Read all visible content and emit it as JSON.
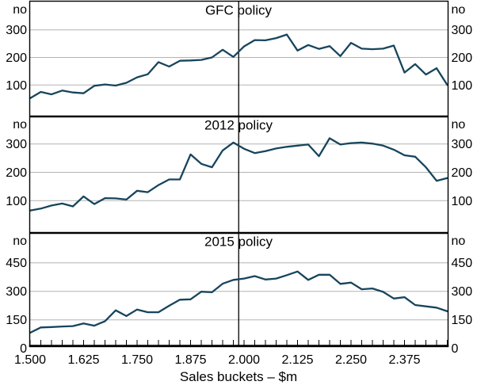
{
  "chart_data": {
    "type": "line",
    "title": "",
    "x_axis_title": "Sales buckets – $m",
    "unit_label": "no",
    "x_start": 1.5,
    "x_step": 0.025,
    "n_points": 40,
    "x_tick_labels": [
      "1.500",
      "1.625",
      "1.750",
      "1.875",
      "2.000",
      "2.125",
      "2.250",
      "2.375"
    ],
    "x_tick_values": [
      1.5,
      1.625,
      1.75,
      1.875,
      2.0,
      2.125,
      2.25,
      2.375
    ],
    "reference_line_x": 1.9875,
    "line_color": "#17455c",
    "grid_color": "#b3b3b3",
    "axis_color": "#000000",
    "legend": "none",
    "grid": "horizontal",
    "panels": [
      {
        "title": "GFC policy",
        "ylim": [
          0,
          410
        ],
        "gridlines": [
          100,
          200,
          300
        ],
        "ytick_labels": [
          100,
          200,
          300
        ],
        "values": [
          52,
          75,
          66,
          80,
          73,
          70,
          97,
          102,
          98,
          108,
          128,
          139,
          183,
          167,
          188,
          189,
          191,
          200,
          228,
          202,
          240,
          263,
          262,
          270,
          283,
          225,
          245,
          231,
          241,
          205,
          253,
          232,
          230,
          232,
          243,
          145,
          176,
          138,
          161,
          100
        ]
      },
      {
        "title": "2012 policy",
        "ylim": [
          0,
          400
        ],
        "gridlines": [
          100,
          200,
          300
        ],
        "ytick_labels": [
          100,
          200,
          300
        ],
        "values": [
          65,
          72,
          83,
          90,
          80,
          115,
          88,
          109,
          108,
          104,
          135,
          130,
          155,
          175,
          175,
          263,
          230,
          218,
          277,
          305,
          283,
          268,
          275,
          284,
          290,
          294,
          298,
          257,
          320,
          298,
          303,
          305,
          301,
          294,
          280,
          260,
          255,
          218,
          170,
          180
        ]
      },
      {
        "title": "2015 policy",
        "ylim": [
          0,
          600
        ],
        "gridlines": [
          150,
          300,
          450
        ],
        "ytick_labels": [
          0,
          150,
          300,
          450
        ],
        "values": [
          82,
          110,
          112,
          115,
          117,
          131,
          119,
          143,
          200,
          170,
          204,
          190,
          190,
          224,
          256,
          258,
          298,
          295,
          340,
          360,
          367,
          380,
          362,
          367,
          385,
          404,
          360,
          387,
          387,
          339,
          346,
          311,
          315,
          297,
          262,
          269,
          228,
          221,
          214,
          195
        ]
      }
    ]
  }
}
